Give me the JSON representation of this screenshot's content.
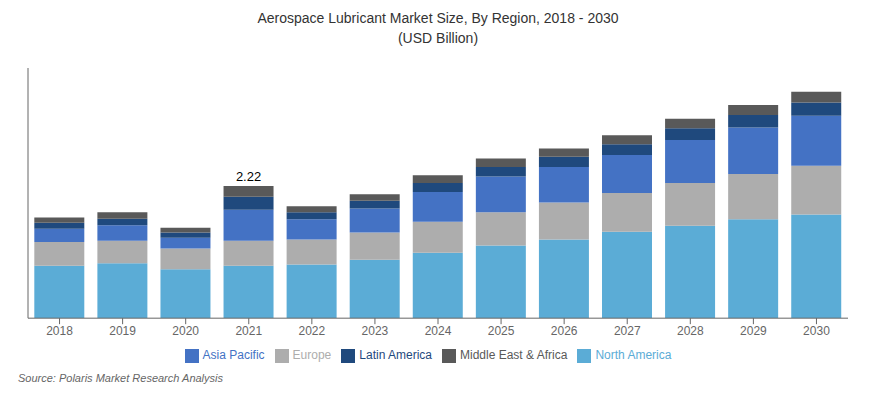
{
  "chart_data": {
    "type": "bar",
    "stacked": true,
    "title": "Aerospace Lubricant Market Size, By Region, 2018 - 2030",
    "subtitle": "(USD Billion)",
    "categories": [
      "2018",
      "2019",
      "2020",
      "2021",
      "2022",
      "2023",
      "2024",
      "2025",
      "2026",
      "2027",
      "2028",
      "2029",
      "2030"
    ],
    "series": [
      {
        "name": "North America",
        "color": "#5BACD6",
        "values": [
          0.88,
          0.92,
          0.82,
          0.88,
          0.9,
          0.98,
          1.1,
          1.22,
          1.32,
          1.45,
          1.55,
          1.66,
          1.74
        ]
      },
      {
        "name": "Europe",
        "color": "#ADADAD",
        "values": [
          0.4,
          0.38,
          0.35,
          0.42,
          0.42,
          0.46,
          0.52,
          0.56,
          0.62,
          0.65,
          0.72,
          0.76,
          0.82
        ]
      },
      {
        "name": "Asia Pacific",
        "color": "#4472C4",
        "values": [
          0.22,
          0.26,
          0.18,
          0.52,
          0.34,
          0.4,
          0.5,
          0.6,
          0.6,
          0.64,
          0.72,
          0.78,
          0.84
        ]
      },
      {
        "name": "Latin America",
        "color": "#1F497D",
        "values": [
          0.1,
          0.11,
          0.09,
          0.22,
          0.12,
          0.13,
          0.15,
          0.16,
          0.17,
          0.18,
          0.2,
          0.21,
          0.22
        ]
      },
      {
        "name": "Middle East & Africa",
        "color": "#595959",
        "values": [
          0.09,
          0.11,
          0.08,
          0.18,
          0.1,
          0.11,
          0.13,
          0.14,
          0.14,
          0.15,
          0.16,
          0.17,
          0.18
        ]
      }
    ],
    "ylim": [
      0,
      4.2
    ],
    "yticks": [],
    "tick_labels": "x",
    "grid": false,
    "legend": "bottom",
    "annotations": [
      {
        "text": "2.22",
        "x": "2021"
      }
    ],
    "source": "Source: Polaris  Market Research Analysis"
  }
}
